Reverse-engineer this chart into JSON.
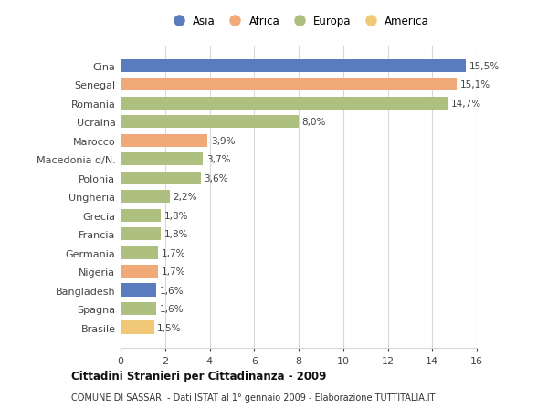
{
  "categories": [
    "Brasile",
    "Spagna",
    "Bangladesh",
    "Nigeria",
    "Germania",
    "Francia",
    "Grecia",
    "Ungheria",
    "Polonia",
    "Macedonia d/N.",
    "Marocco",
    "Ucraina",
    "Romania",
    "Senegal",
    "Cina"
  ],
  "values": [
    1.5,
    1.6,
    1.6,
    1.7,
    1.7,
    1.8,
    1.8,
    2.2,
    3.6,
    3.7,
    3.9,
    8.0,
    14.7,
    15.1,
    15.5
  ],
  "labels": [
    "1,5%",
    "1,6%",
    "1,6%",
    "1,7%",
    "1,7%",
    "1,8%",
    "1,8%",
    "2,2%",
    "3,6%",
    "3,7%",
    "3,9%",
    "8,0%",
    "14,7%",
    "15,1%",
    "15,5%"
  ],
  "colors": [
    "#f0c878",
    "#adc080",
    "#5b7bbf",
    "#f0aa78",
    "#adc080",
    "#adc080",
    "#adc080",
    "#adc080",
    "#adc080",
    "#adc080",
    "#f0aa78",
    "#adc080",
    "#adc080",
    "#f0aa78",
    "#5b7bbf"
  ],
  "continent_colors": {
    "Asia": "#5b7bbf",
    "Africa": "#f0aa78",
    "Europa": "#adc080",
    "America": "#f0c878"
  },
  "title": "Cittadini Stranieri per Cittadinanza - 2009",
  "subtitle": "COMUNE DI SASSARI - Dati ISTAT al 1° gennaio 2009 - Elaborazione TUTTITALIA.IT",
  "xlim": [
    0,
    16
  ],
  "xticks": [
    0,
    2,
    4,
    6,
    8,
    10,
    12,
    14,
    16
  ],
  "background_color": "#ffffff",
  "bar_background": "#ffffff",
  "grid_color": "#d8d8d8"
}
